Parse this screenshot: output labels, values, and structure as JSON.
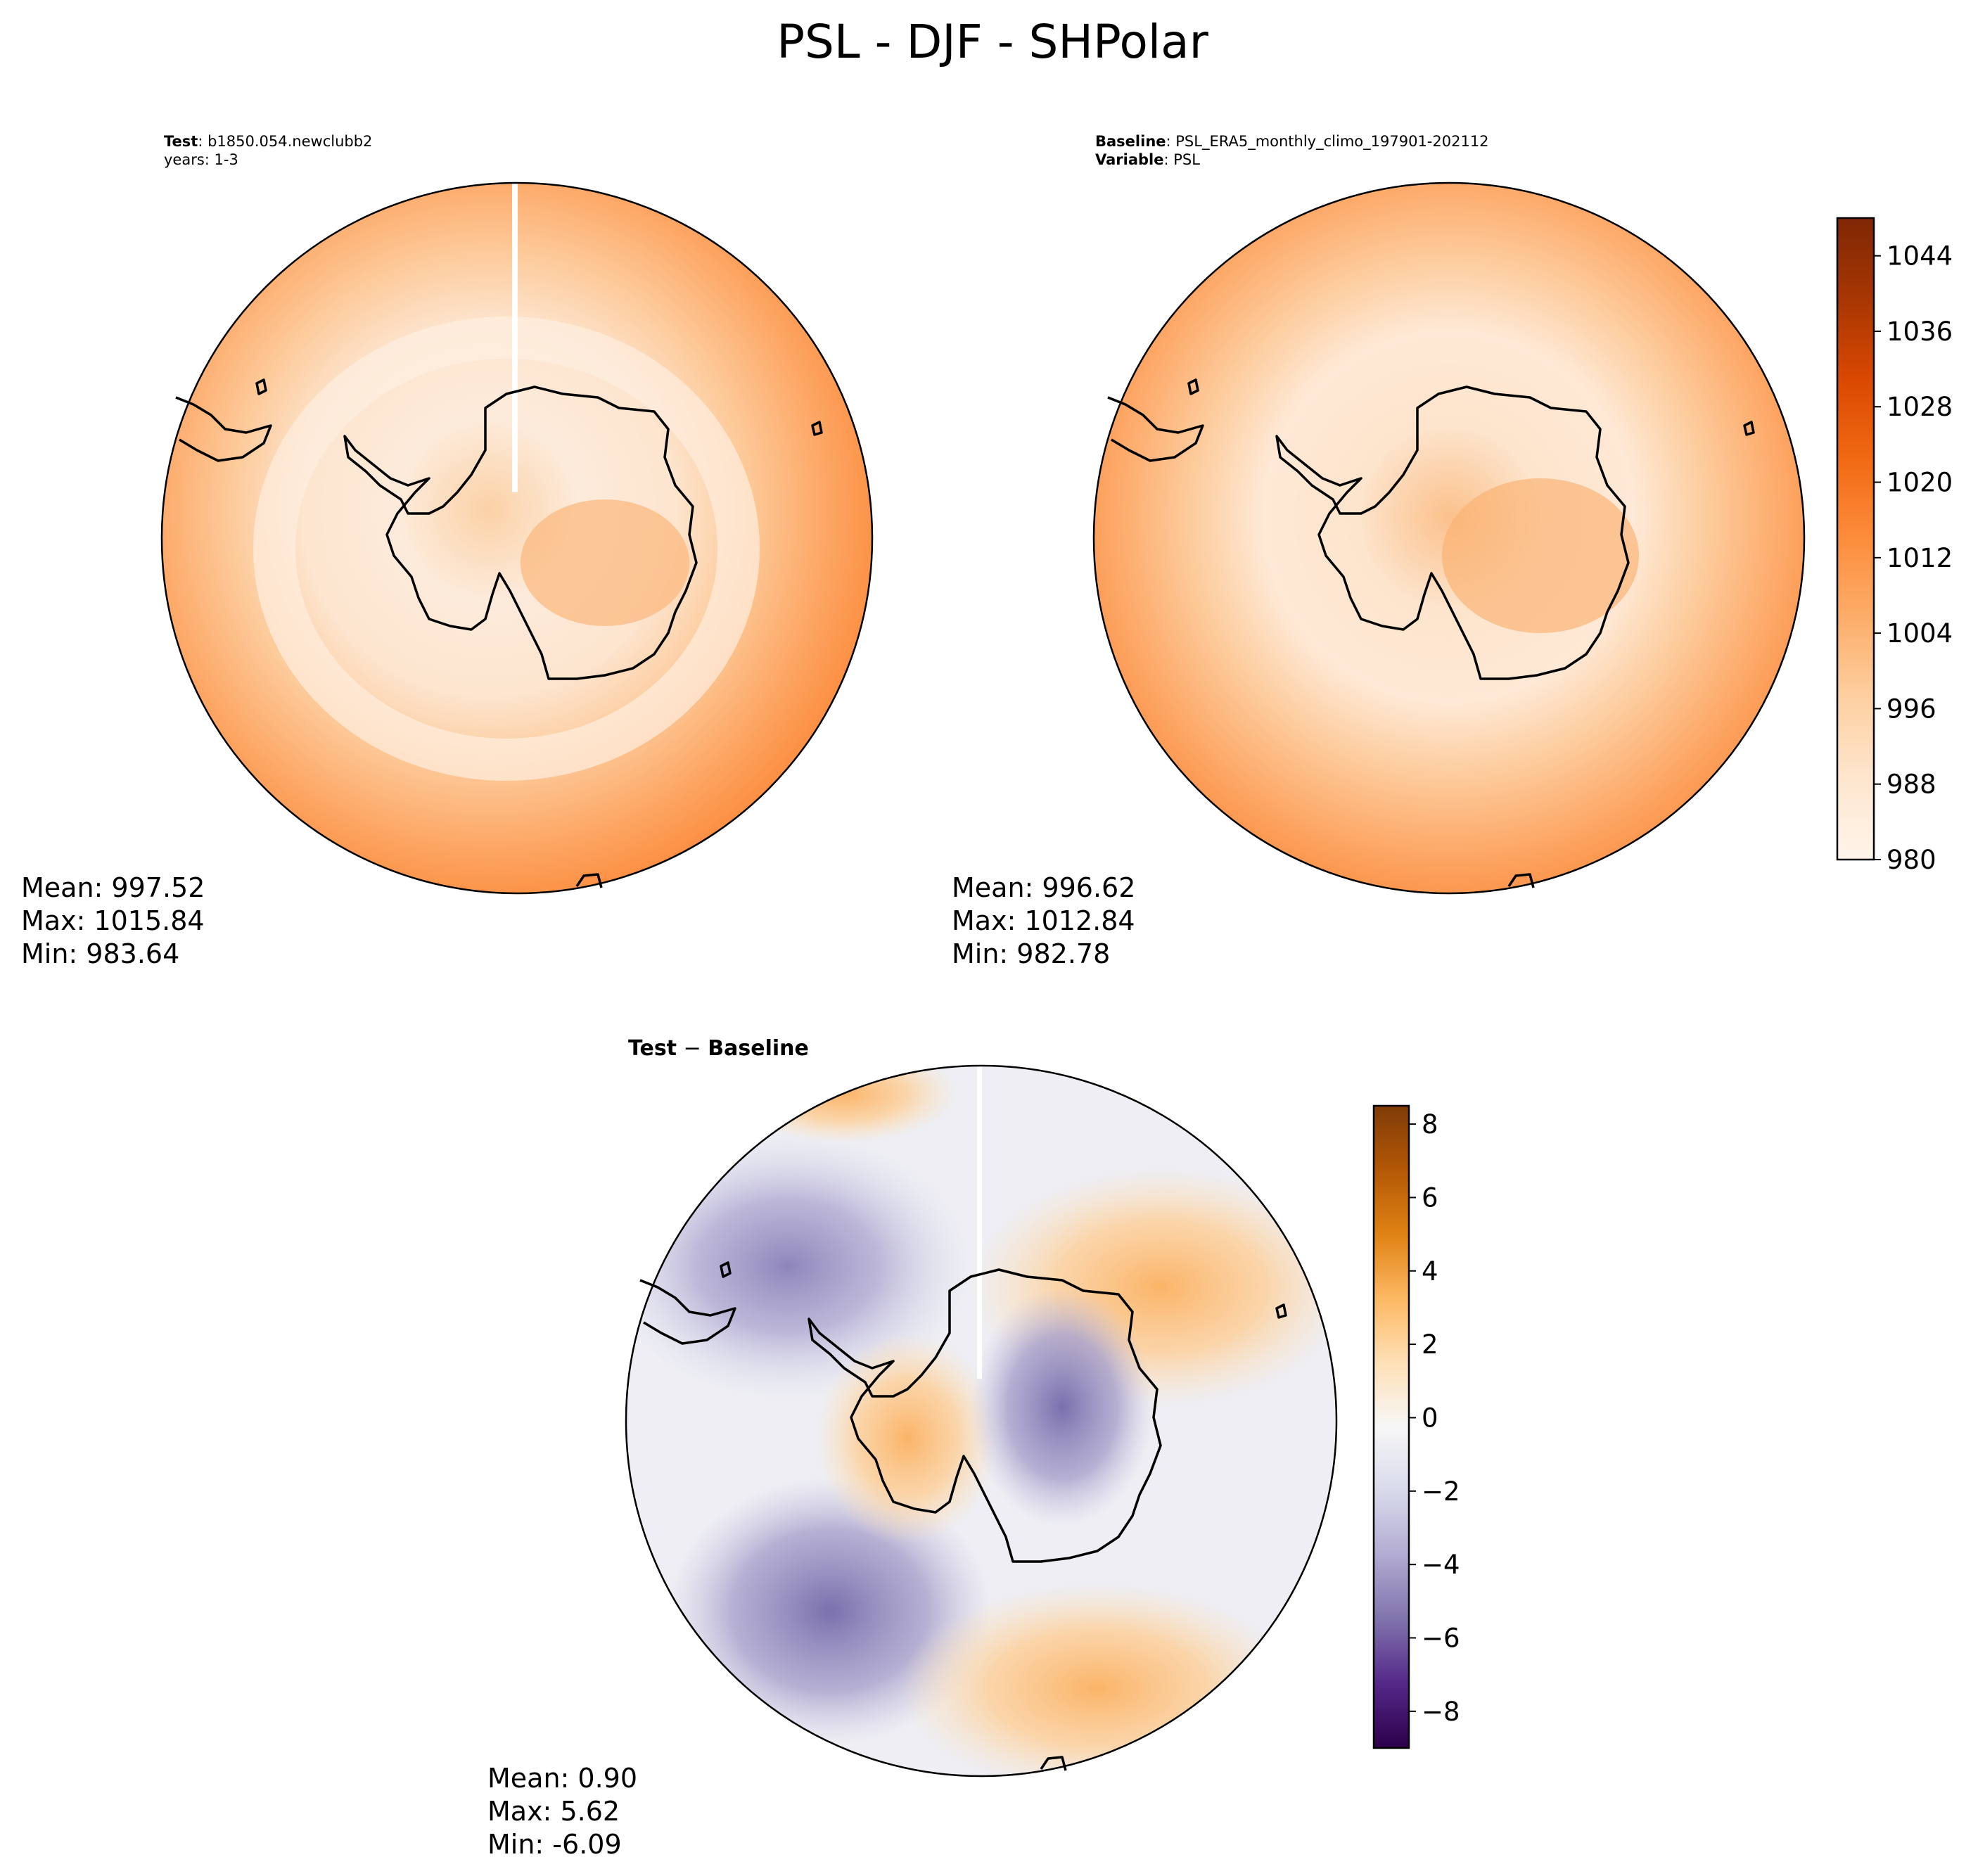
{
  "figure": {
    "title": "PSL - DJF - SHPolar"
  },
  "panels": {
    "test": {
      "label_bold": "Test",
      "label_rest": ": b1850.054.newclubb2",
      "line2": "years: 1-3",
      "stats": [
        "Mean: 997.52",
        "Max: 1015.84",
        "Min: 983.64"
      ]
    },
    "baseline": {
      "label_bold": "Baseline",
      "label_rest": ": PSL_ERA5_monthly_climo_197901-202112",
      "line2_bold": "Variable",
      "line2_rest": ": PSL",
      "stats": [
        "Mean: 996.62",
        "Max: 1012.84",
        "Min: 982.78"
      ]
    },
    "diff": {
      "label_a": "Test",
      "label_op": " − ",
      "label_b": "Baseline",
      "stats": [
        "Mean:  0.90",
        "Max:  5.62",
        "Min: -6.09"
      ]
    }
  },
  "chart_data": [
    {
      "type": "heatmap",
      "name": "test",
      "projection": "south-polar-stereographic",
      "stats": {
        "mean": 997.52,
        "max": 1015.84,
        "min": 983.64
      },
      "colorbar_ref": "abs"
    },
    {
      "type": "heatmap",
      "name": "baseline",
      "projection": "south-polar-stereographic",
      "stats": {
        "mean": 996.62,
        "max": 1012.84,
        "min": 982.78
      },
      "colorbar_ref": "abs"
    },
    {
      "type": "heatmap",
      "name": "test-baseline",
      "projection": "south-polar-stereographic",
      "stats": {
        "mean": 0.9,
        "max": 5.62,
        "min": -6.09
      },
      "colorbar_ref": "diff"
    }
  ],
  "colorbars": {
    "abs": {
      "range": [
        980,
        1048
      ],
      "ticks": [
        "980",
        "988",
        "996",
        "1004",
        "1012",
        "1020",
        "1028",
        "1036",
        "1044"
      ],
      "tick_values": [
        980,
        988,
        996,
        1004,
        1012,
        1020,
        1028,
        1036,
        1044
      ],
      "colormap": "Oranges",
      "colors": [
        "#fff5eb",
        "#fee6ce",
        "#fdd0a2",
        "#fdae6b",
        "#fd8d3c",
        "#f16913",
        "#d94801",
        "#a63603",
        "#7f2704"
      ]
    },
    "diff": {
      "range": [
        -9,
        8.5
      ],
      "ticks": [
        "−8",
        "−6",
        "−4",
        "−2",
        "0",
        "2",
        "4",
        "6",
        "8"
      ],
      "tick_values": [
        -8,
        -6,
        -4,
        -2,
        0,
        2,
        4,
        6,
        8
      ],
      "colormap": "PuOr_r",
      "colors": [
        "#2d004b",
        "#542788",
        "#8073ac",
        "#b2abd2",
        "#d8daeb",
        "#f7f7f7",
        "#fee0b6",
        "#fdb863",
        "#e08214",
        "#b35806",
        "#7f3b08"
      ]
    }
  }
}
